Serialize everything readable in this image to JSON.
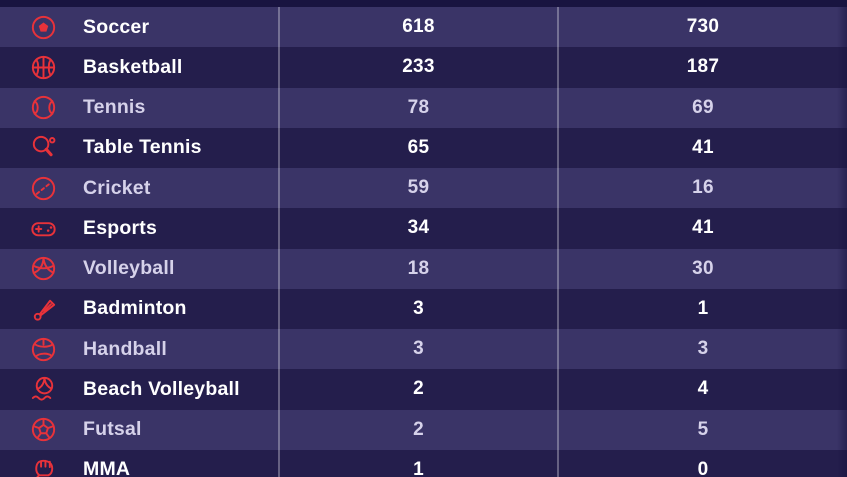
{
  "colors": {
    "accent_red": "#e8323a",
    "row_light": "#3a3467",
    "row_dark": "#241e4c",
    "backdrop": "#191440",
    "divider": "#ffffff4d",
    "text_bright": "#ffffff",
    "text_soft": "#d6d2ea"
  },
  "table": {
    "rows": [
      {
        "label": "Soccer",
        "icon": "soccer-icon",
        "stat1": "618",
        "stat2": "730"
      },
      {
        "label": "Basketball",
        "icon": "basketball-icon",
        "stat1": "233",
        "stat2": "187"
      },
      {
        "label": "Tennis",
        "icon": "tennis-icon",
        "stat1": "78",
        "stat2": "69"
      },
      {
        "label": "Table Tennis",
        "icon": "table-tennis-icon",
        "stat1": "65",
        "stat2": "41"
      },
      {
        "label": "Cricket",
        "icon": "cricket-icon",
        "stat1": "59",
        "stat2": "16"
      },
      {
        "label": "Esports",
        "icon": "esports-icon",
        "stat1": "34",
        "stat2": "41"
      },
      {
        "label": "Volleyball",
        "icon": "volleyball-icon",
        "stat1": "18",
        "stat2": "30"
      },
      {
        "label": "Badminton",
        "icon": "badminton-icon",
        "stat1": "3",
        "stat2": "1"
      },
      {
        "label": "Handball",
        "icon": "handball-icon",
        "stat1": "3",
        "stat2": "3"
      },
      {
        "label": "Beach Volleyball",
        "icon": "beach-volleyball-icon",
        "stat1": "2",
        "stat2": "4"
      },
      {
        "label": "Futsal",
        "icon": "futsal-icon",
        "stat1": "2",
        "stat2": "5"
      },
      {
        "label": "MMA",
        "icon": "mma-icon",
        "stat1": "1",
        "stat2": "0"
      }
    ]
  }
}
